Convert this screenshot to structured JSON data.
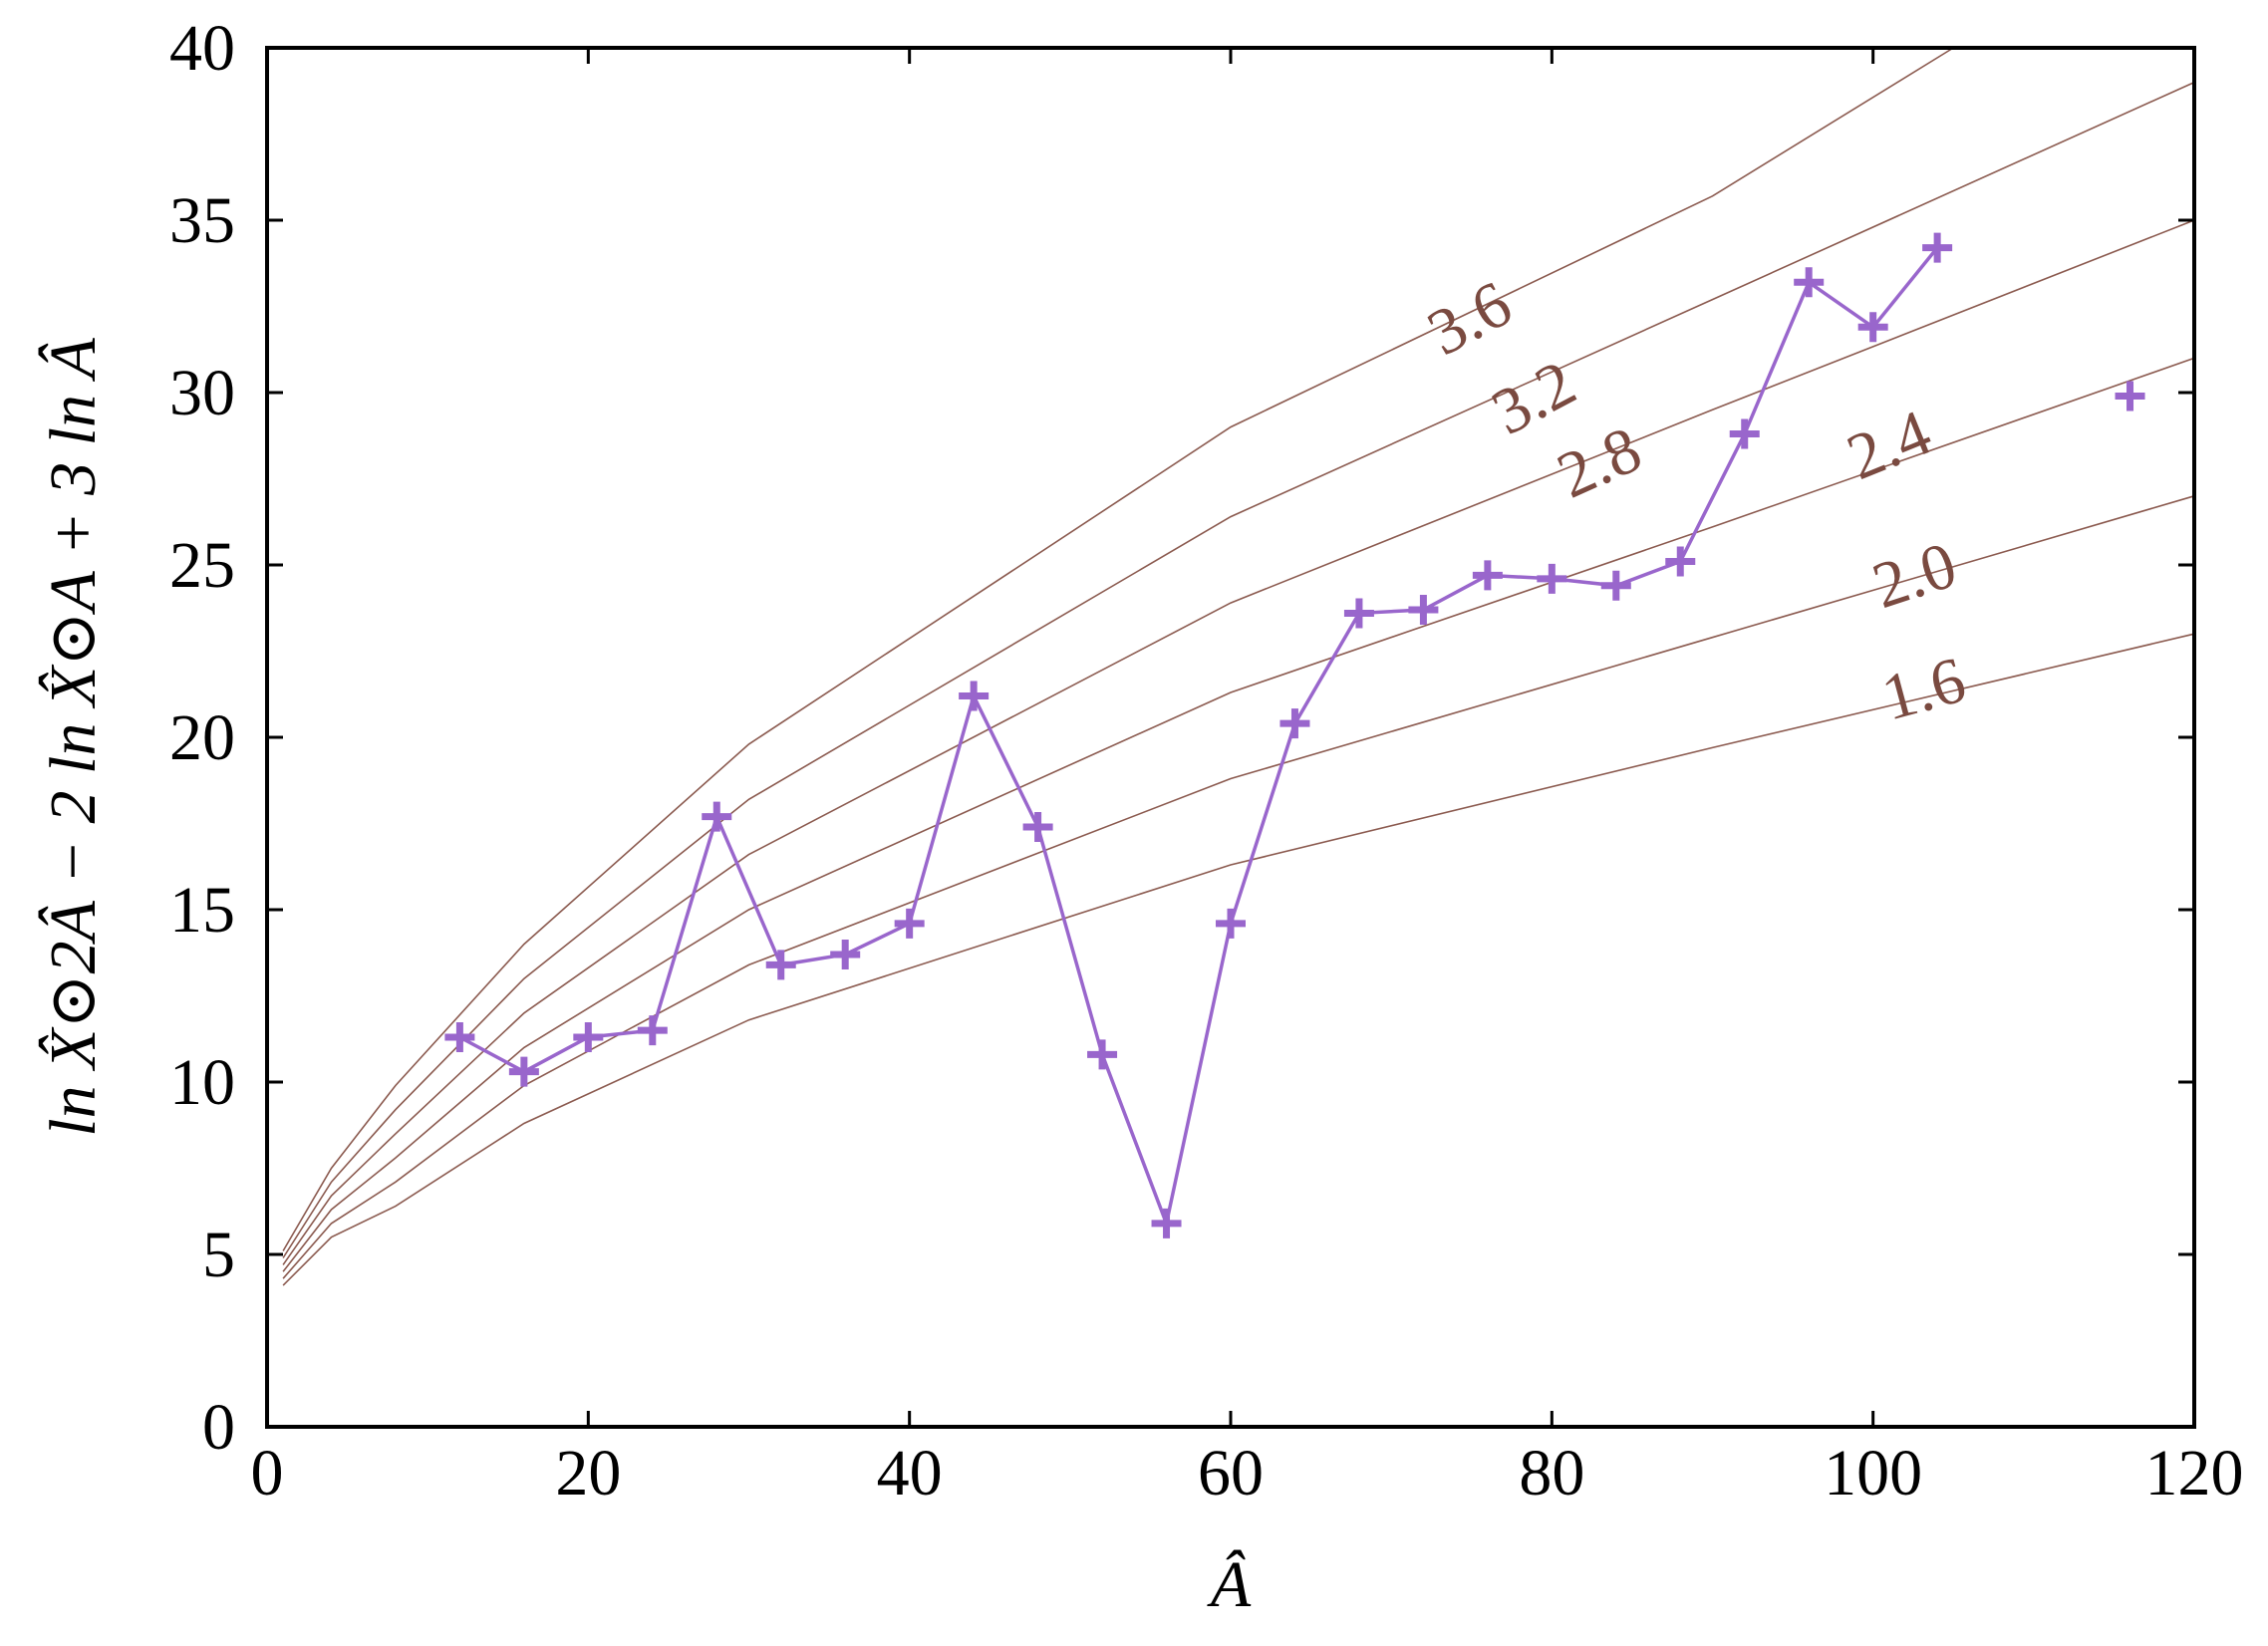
{
  "colors": {
    "data_series": "#9966cc",
    "contours": "#8b5a4f",
    "contour_labels": "#7a4a40",
    "axes": "#000000",
    "background": "#ffffff"
  },
  "chart_data": {
    "type": "line",
    "xlabel": "Â",
    "ylabel": "ln X̂⊙2Â − 2 ln X̂⊙A + 3 ln Â",
    "xlim": [
      0,
      120
    ],
    "ylim": [
      0,
      40
    ],
    "x_ticks": [
      "0",
      "20",
      "40",
      "60",
      "80",
      "100",
      "120"
    ],
    "y_ticks": [
      "0",
      "5",
      "10",
      "15",
      "20",
      "25",
      "30",
      "35",
      "40"
    ],
    "grid": false,
    "series": [
      {
        "marker": "plus",
        "connected": true,
        "points": [
          [
            12,
            11.3
          ],
          [
            16,
            10.3
          ],
          [
            20,
            11.3
          ],
          [
            24,
            11.5
          ],
          [
            28,
            17.7
          ],
          [
            32,
            13.4
          ],
          [
            36,
            13.7
          ],
          [
            40,
            14.6
          ],
          [
            44,
            21.2
          ],
          [
            48,
            17.4
          ],
          [
            52,
            10.8
          ],
          [
            56,
            5.9
          ],
          [
            60,
            14.6
          ],
          [
            64,
            20.4
          ],
          [
            68,
            23.6
          ],
          [
            72,
            23.7
          ],
          [
            76,
            24.7
          ],
          [
            80,
            24.6
          ],
          [
            84,
            24.4
          ],
          [
            88,
            25.1
          ],
          [
            92,
            28.8
          ],
          [
            96,
            33.2
          ],
          [
            100,
            31.9
          ],
          [
            104,
            34.2
          ]
        ]
      },
      {
        "marker": "plus",
        "connected": false,
        "points": [
          [
            116,
            29.9
          ]
        ]
      }
    ],
    "contours": [
      {
        "label": "1.6",
        "x": [
          1,
          4,
          8,
          16,
          30,
          60,
          90,
          120
        ],
        "y": [
          4.1,
          5.5,
          6.4,
          8.8,
          11.8,
          16.3,
          19.7,
          23.0
        ]
      },
      {
        "label": "2.0",
        "x": [
          1,
          4,
          8,
          16,
          30,
          60,
          90,
          120
        ],
        "y": [
          4.3,
          5.9,
          7.1,
          9.9,
          13.4,
          18.8,
          22.9,
          27.0
        ]
      },
      {
        "label": "2.4",
        "x": [
          1,
          4,
          8,
          16,
          30,
          60,
          90,
          120
        ],
        "y": [
          4.5,
          6.3,
          7.8,
          11.0,
          15.0,
          21.3,
          26.1,
          31.0
        ]
      },
      {
        "label": "2.8",
        "x": [
          1,
          4,
          8,
          16,
          30,
          60,
          90,
          120
        ],
        "y": [
          4.7,
          6.7,
          8.5,
          12.0,
          16.6,
          23.9,
          29.5,
          35.0
        ]
      },
      {
        "label": "3.2",
        "x": [
          1,
          4,
          8,
          16,
          30,
          60,
          90,
          120
        ],
        "y": [
          4.9,
          7.1,
          9.2,
          13.0,
          18.2,
          26.4,
          32.7,
          39.0
        ]
      },
      {
        "label": "3.6",
        "x": [
          1,
          4,
          8,
          16,
          30,
          60,
          90,
          105
        ],
        "y": [
          5.1,
          7.5,
          9.9,
          14.0,
          19.8,
          29.0,
          35.7,
          40.0
        ]
      }
    ],
    "contour_label_positions": [
      {
        "label": "3.6",
        "x": 75.5,
        "y": 31.6,
        "angle": -28
      },
      {
        "label": "3.2",
        "x": 79.5,
        "y": 29.3,
        "angle": -28
      },
      {
        "label": "2.8",
        "x": 83.5,
        "y": 27.4,
        "angle": -24
      },
      {
        "label": "2.4",
        "x": 101.5,
        "y": 27.9,
        "angle": -22
      },
      {
        "label": "2.0",
        "x": 103.0,
        "y": 24.1,
        "angle": -18
      },
      {
        "label": "1.6",
        "x": 103.5,
        "y": 20.8,
        "angle": -15
      }
    ]
  }
}
